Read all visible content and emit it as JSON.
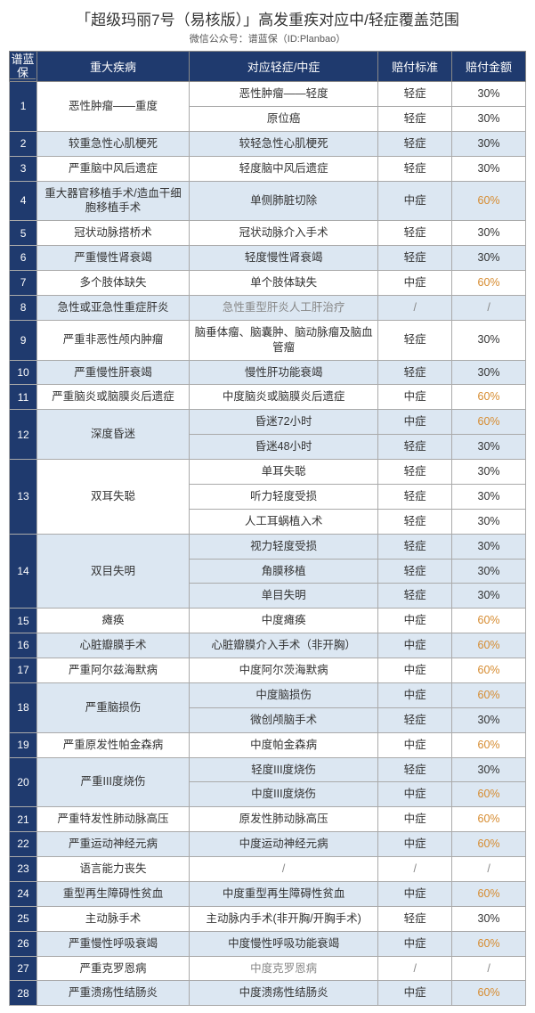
{
  "title": "「超级玛丽7号（易核版）」高发重疾对应中/轻症覆盖范围",
  "subtitle": "微信公众号：谱蓝保（ID:Planbao）",
  "sideLabel": "谱蓝保",
  "headers": {
    "num": "",
    "disease": "重大疾病",
    "minor": "对应轻症/中症",
    "std": "赔付标准",
    "amt": "赔付金额"
  },
  "colors": {
    "headerBg": "#1f3a6e",
    "headerText": "#ffffff",
    "altRowBg": "#dce7f2",
    "whiteRowBg": "#ffffff",
    "textColor": "#333333",
    "amtOrange": "#d68b2f",
    "amtDark": "#333333",
    "border": "#aaaaaa"
  },
  "rows": [
    {
      "n": "1",
      "alt": false,
      "disease": "恶性肿瘤——重度",
      "sub": [
        {
          "minor": "恶性肿瘤——轻度",
          "std": "轻症",
          "amt": "30%",
          "orange": false
        },
        {
          "minor": "原位癌",
          "std": "轻症",
          "amt": "30%",
          "orange": false
        }
      ]
    },
    {
      "n": "2",
      "alt": true,
      "disease": "较重急性心肌梗死",
      "sub": [
        {
          "minor": "较轻急性心肌梗死",
          "std": "轻症",
          "amt": "30%",
          "orange": false
        }
      ]
    },
    {
      "n": "3",
      "alt": false,
      "disease": "严重脑中风后遗症",
      "sub": [
        {
          "minor": "轻度脑中风后遗症",
          "std": "轻症",
          "amt": "30%",
          "orange": false
        }
      ]
    },
    {
      "n": "4",
      "alt": true,
      "disease": "重大器官移植手术/造血干细胞移植手术",
      "sub": [
        {
          "minor": "单侧肺脏切除",
          "std": "中症",
          "amt": "60%",
          "orange": true
        }
      ]
    },
    {
      "n": "5",
      "alt": false,
      "disease": "冠状动脉搭桥术",
      "sub": [
        {
          "minor": "冠状动脉介入手术",
          "std": "轻症",
          "amt": "30%",
          "orange": false
        }
      ]
    },
    {
      "n": "6",
      "alt": true,
      "disease": "严重慢性肾衰竭",
      "sub": [
        {
          "minor": "轻度慢性肾衰竭",
          "std": "轻症",
          "amt": "30%",
          "orange": false
        }
      ]
    },
    {
      "n": "7",
      "alt": false,
      "disease": "多个肢体缺失",
      "sub": [
        {
          "minor": "单个肢体缺失",
          "std": "中症",
          "amt": "60%",
          "orange": true
        }
      ]
    },
    {
      "n": "8",
      "alt": true,
      "disease": "急性或亚急性重症肝炎",
      "sub": [
        {
          "minor": "急性重型肝炎人工肝治疗",
          "std": "/",
          "amt": "/",
          "orange": false,
          "slash": true
        }
      ]
    },
    {
      "n": "9",
      "alt": false,
      "disease": "严重非恶性颅内肿瘤",
      "sub": [
        {
          "minor": "脑垂体瘤、脑囊肿、脑动脉瘤及脑血管瘤",
          "std": "轻症",
          "amt": "30%",
          "orange": false
        }
      ]
    },
    {
      "n": "10",
      "alt": true,
      "disease": "严重慢性肝衰竭",
      "sub": [
        {
          "minor": "慢性肝功能衰竭",
          "std": "轻症",
          "amt": "30%",
          "orange": false
        }
      ]
    },
    {
      "n": "11",
      "alt": false,
      "disease": "严重脑炎或脑膜炎后遗症",
      "sub": [
        {
          "minor": "中度脑炎或脑膜炎后遗症",
          "std": "中症",
          "amt": "60%",
          "orange": true
        }
      ]
    },
    {
      "n": "12",
      "alt": true,
      "disease": "深度昏迷",
      "sub": [
        {
          "minor": "昏迷72小时",
          "std": "中症",
          "amt": "60%",
          "orange": true
        },
        {
          "minor": "昏迷48小时",
          "std": "轻症",
          "amt": "30%",
          "orange": false
        }
      ]
    },
    {
      "n": "13",
      "alt": false,
      "disease": "双耳失聪",
      "sub": [
        {
          "minor": "单耳失聪",
          "std": "轻症",
          "amt": "30%",
          "orange": false
        },
        {
          "minor": "听力轻度受损",
          "std": "轻症",
          "amt": "30%",
          "orange": false
        },
        {
          "minor": "人工耳蜗植入术",
          "std": "轻症",
          "amt": "30%",
          "orange": false
        }
      ]
    },
    {
      "n": "14",
      "alt": true,
      "disease": "双目失明",
      "sub": [
        {
          "minor": "视力轻度受损",
          "std": "轻症",
          "amt": "30%",
          "orange": false
        },
        {
          "minor": "角膜移植",
          "std": "轻症",
          "amt": "30%",
          "orange": false
        },
        {
          "minor": "单目失明",
          "std": "轻症",
          "amt": "30%",
          "orange": false
        }
      ]
    },
    {
      "n": "15",
      "alt": false,
      "disease": "瘫痪",
      "sub": [
        {
          "minor": "中度瘫痪",
          "std": "中症",
          "amt": "60%",
          "orange": true
        }
      ]
    },
    {
      "n": "16",
      "alt": true,
      "disease": "心脏瓣膜手术",
      "sub": [
        {
          "minor": "心脏瓣膜介入手术（非开胸）",
          "std": "中症",
          "amt": "60%",
          "orange": true
        }
      ]
    },
    {
      "n": "17",
      "alt": false,
      "disease": "严重阿尔兹海默病",
      "sub": [
        {
          "minor": "中度阿尔茨海默病",
          "std": "中症",
          "amt": "60%",
          "orange": true
        }
      ]
    },
    {
      "n": "18",
      "alt": true,
      "disease": "严重脑损伤",
      "sub": [
        {
          "minor": "中度脑损伤",
          "std": "中症",
          "amt": "60%",
          "orange": true
        },
        {
          "minor": "微创颅脑手术",
          "std": "轻症",
          "amt": "30%",
          "orange": false
        }
      ]
    },
    {
      "n": "19",
      "alt": false,
      "disease": "严重原发性帕金森病",
      "sub": [
        {
          "minor": "中度帕金森病",
          "std": "中症",
          "amt": "60%",
          "orange": true
        }
      ]
    },
    {
      "n": "20",
      "alt": true,
      "disease": "严重III度烧伤",
      "sub": [
        {
          "minor": "轻度III度烧伤",
          "std": "轻症",
          "amt": "30%",
          "orange": false
        },
        {
          "minor": "中度III度烧伤",
          "std": "中症",
          "amt": "60%",
          "orange": true
        }
      ]
    },
    {
      "n": "21",
      "alt": false,
      "disease": "严重特发性肺动脉高压",
      "sub": [
        {
          "minor": "原发性肺动脉高压",
          "std": "中症",
          "amt": "60%",
          "orange": true
        }
      ]
    },
    {
      "n": "22",
      "alt": true,
      "disease": "严重运动神经元病",
      "sub": [
        {
          "minor": "中度运动神经元病",
          "std": "中症",
          "amt": "60%",
          "orange": true
        }
      ]
    },
    {
      "n": "23",
      "alt": false,
      "disease": "语言能力丧失",
      "sub": [
        {
          "minor": "/",
          "std": "/",
          "amt": "/",
          "orange": false,
          "slash": true
        }
      ]
    },
    {
      "n": "24",
      "alt": true,
      "disease": "重型再生障碍性贫血",
      "sub": [
        {
          "minor": "中度重型再生障碍性贫血",
          "std": "中症",
          "amt": "60%",
          "orange": true
        }
      ]
    },
    {
      "n": "25",
      "alt": false,
      "disease": "主动脉手术",
      "sub": [
        {
          "minor": "主动脉内手术(非开胸/开胸手术)",
          "std": "轻症",
          "amt": "30%",
          "orange": false
        }
      ]
    },
    {
      "n": "26",
      "alt": true,
      "disease": "严重慢性呼吸衰竭",
      "sub": [
        {
          "minor": "中度慢性呼吸功能衰竭",
          "std": "中症",
          "amt": "60%",
          "orange": true
        }
      ]
    },
    {
      "n": "27",
      "alt": false,
      "disease": "严重克罗恩病",
      "sub": [
        {
          "minor": "中度克罗恩病",
          "std": "/",
          "amt": "/",
          "orange": false,
          "slash": true
        }
      ]
    },
    {
      "n": "28",
      "alt": true,
      "disease": "严重溃疡性结肠炎",
      "sub": [
        {
          "minor": "中度溃疡性结肠炎",
          "std": "中症",
          "amt": "60%",
          "orange": true
        }
      ]
    }
  ]
}
